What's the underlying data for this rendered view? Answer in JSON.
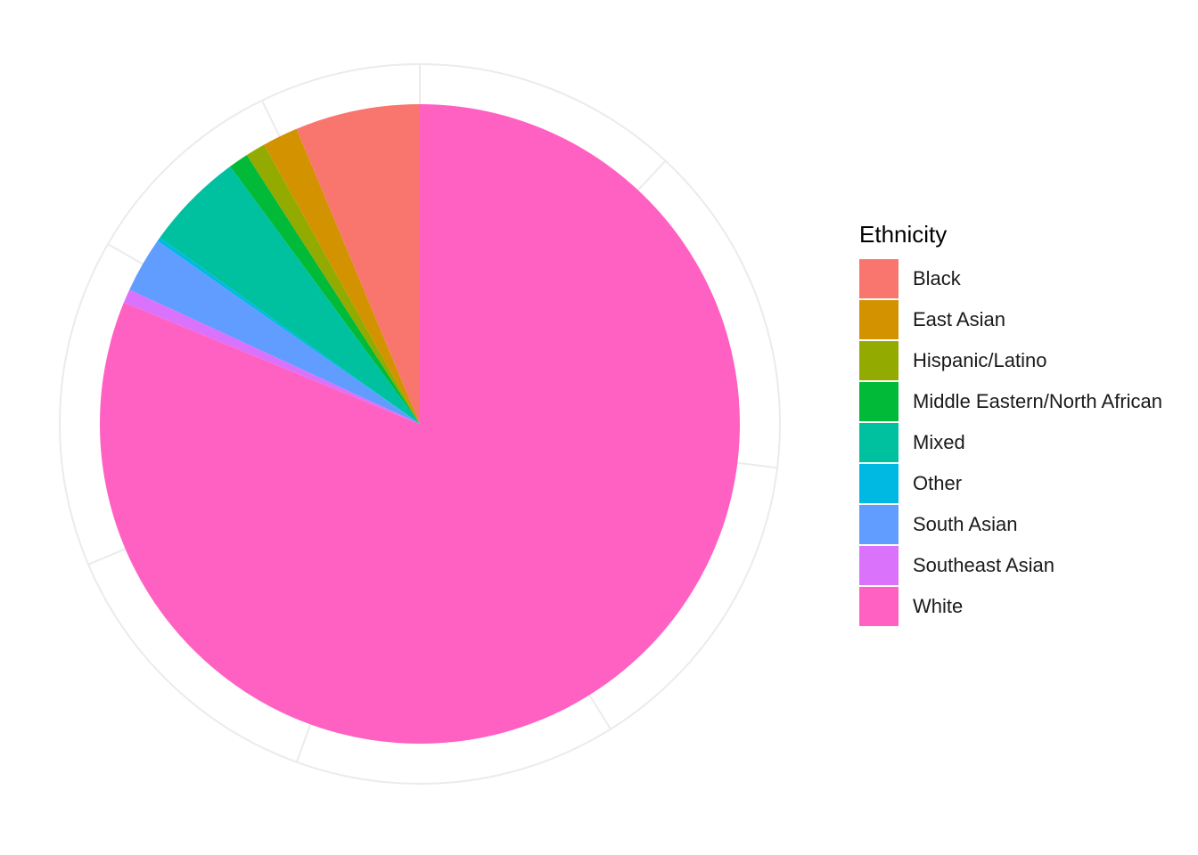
{
  "chart_data": {
    "type": "pie",
    "legend_title": "Ethnicity",
    "legend_position": "right",
    "grid": true,
    "start_angle": "12 o'clock",
    "direction": "counterclockwise",
    "categories": [
      "Black",
      "East Asian",
      "Hispanic/Latino",
      "Middle Eastern/North African",
      "Mixed",
      "Other",
      "South Asian",
      "Southeast Asian",
      "White"
    ],
    "values": [
      6.3,
      1.8,
      1.0,
      1.0,
      5.0,
      0.2,
      2.8,
      0.7,
      81.2
    ],
    "colors": [
      "#F8766D",
      "#D39200",
      "#93AA00",
      "#00BA38",
      "#00C19F",
      "#00B9E3",
      "#619CFF",
      "#DB72FB",
      "#FF61C3"
    ]
  }
}
